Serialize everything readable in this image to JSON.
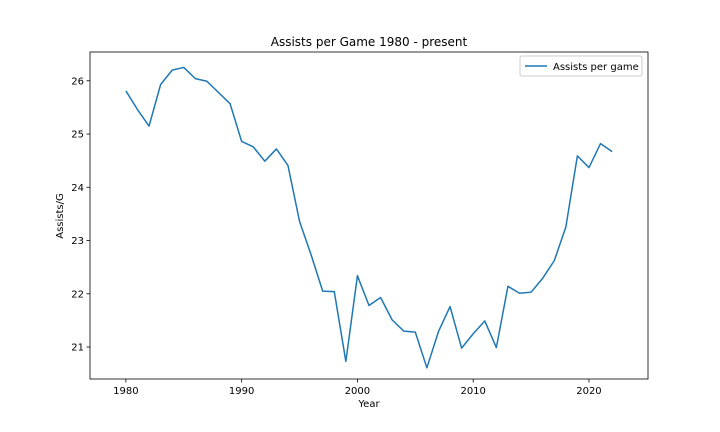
{
  "chart_data": {
    "type": "line",
    "title": "Assists per Game 1980 - present",
    "xlabel": "Year",
    "ylabel": "Assists/G",
    "xlim": [
      1976.9,
      2025.1
    ],
    "ylim": [
      20.4,
      26.54
    ],
    "xticks": [
      1980,
      1990,
      2000,
      2010,
      2020
    ],
    "yticks": [
      21,
      22,
      23,
      24,
      25,
      26
    ],
    "grid": false,
    "legend_position": "top-right",
    "line_color": "#1f77b4",
    "series": [
      {
        "name": "Assists per game",
        "x": [
          1980,
          1981,
          1982,
          1983,
          1984,
          1985,
          1986,
          1987,
          1988,
          1989,
          1990,
          1991,
          1992,
          1993,
          1994,
          1995,
          1996,
          1997,
          1998,
          1999,
          2000,
          2001,
          2002,
          2003,
          2004,
          2005,
          2006,
          2007,
          2008,
          2009,
          2010,
          2011,
          2012,
          2013,
          2014,
          2015,
          2016,
          2017,
          2018,
          2019,
          2020,
          2021,
          2022
        ],
        "values": [
          25.81,
          25.46,
          25.15,
          25.93,
          26.2,
          26.25,
          26.04,
          25.99,
          25.78,
          25.57,
          24.86,
          24.76,
          24.49,
          24.72,
          24.41,
          23.36,
          22.73,
          22.05,
          22.04,
          20.73,
          22.34,
          21.78,
          21.93,
          21.51,
          21.3,
          21.28,
          20.61,
          21.29,
          21.76,
          20.98,
          21.25,
          21.49,
          20.99,
          22.14,
          22.01,
          22.03,
          22.29,
          22.62,
          23.25,
          24.59,
          24.37,
          24.82,
          24.67
        ]
      }
    ]
  }
}
